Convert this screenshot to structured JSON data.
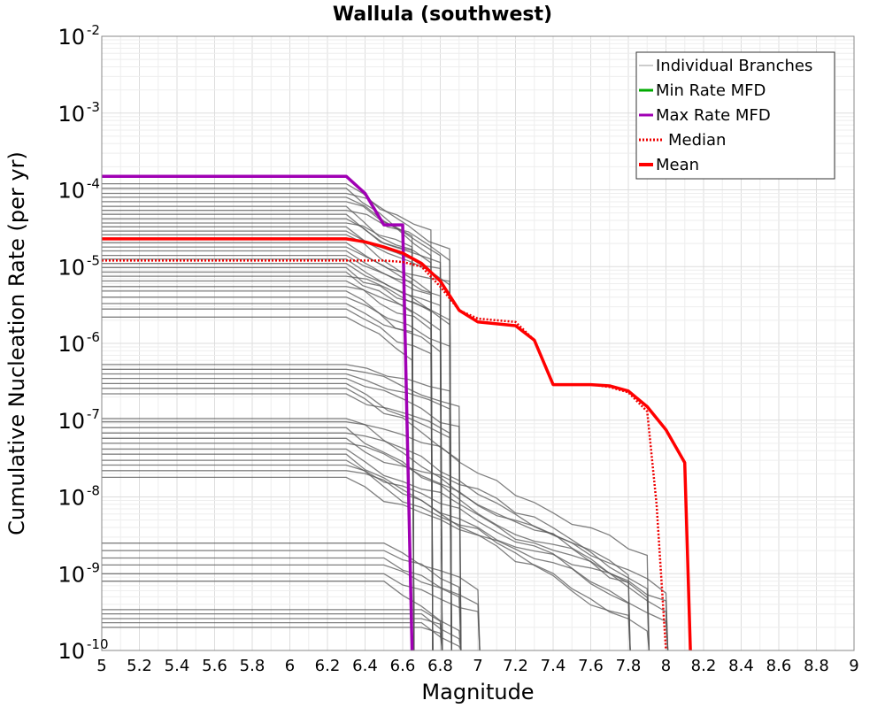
{
  "chart_data": {
    "type": "line",
    "title": "Wallula (southwest)",
    "xlabel": "Magnitude",
    "ylabel": "Cumulative Nucleation Rate (per yr)",
    "xlim": [
      5,
      9
    ],
    "ylim": [
      1e-10,
      0.01
    ],
    "yscale": "log",
    "grid": true,
    "legend_position": "top-right",
    "x_ticks": [
      "5",
      "5.2",
      "5.4",
      "5.6",
      "5.8",
      "6",
      "6.2",
      "6.4",
      "6.6",
      "6.8",
      "7",
      "7.2",
      "7.4",
      "7.6",
      "7.8",
      "8",
      "8.2",
      "8.4",
      "8.6",
      "8.8",
      "9"
    ],
    "y_ticks": [
      {
        "base": "10",
        "exp": "-10",
        "value": 1e-10
      },
      {
        "base": "10",
        "exp": "-9",
        "value": 1e-09
      },
      {
        "base": "10",
        "exp": "-8",
        "value": 1e-08
      },
      {
        "base": "10",
        "exp": "-7",
        "value": 1e-07
      },
      {
        "base": "10",
        "exp": "-6",
        "value": 1e-06
      },
      {
        "base": "10",
        "exp": "-5",
        "value": 1e-05
      },
      {
        "base": "10",
        "exp": "-4",
        "value": 0.0001
      },
      {
        "base": "10",
        "exp": "-3",
        "value": 0.001
      },
      {
        "base": "10",
        "exp": "-2",
        "value": 0.01
      }
    ],
    "series": [
      {
        "name": "Max Rate MFD",
        "color": "#a000b4",
        "style": "solid",
        "x": [
          5.0,
          6.3,
          6.4,
          6.5,
          6.6,
          6.65
        ],
        "y": [
          0.00015,
          0.00015,
          9e-05,
          3.5e-05,
          3.5e-05,
          1e-10
        ]
      },
      {
        "name": "Min Rate MFD",
        "color": "#00aa00",
        "style": "solid",
        "x": [],
        "y": []
      },
      {
        "name": "Median",
        "color": "#ee0000",
        "style": "dotted",
        "x": [
          5.0,
          6.3,
          6.4,
          6.5,
          6.6,
          6.7,
          6.8,
          6.9,
          7.0,
          7.1,
          7.2,
          7.3,
          7.4,
          7.5,
          7.6,
          7.7,
          7.8,
          7.9,
          7.95,
          8.0
        ],
        "y": [
          1.2e-05,
          1.2e-05,
          1.2e-05,
          1.2e-05,
          1.15e-05,
          1e-05,
          5.5e-06,
          2.7e-06,
          2.1e-06,
          2e-06,
          1.9e-06,
          1.1e-06,
          2.9e-07,
          2.9e-07,
          2.9e-07,
          2.7e-07,
          2.3e-07,
          1.3e-07,
          8e-09,
          1e-10
        ]
      },
      {
        "name": "Mean",
        "color": "#ff0000",
        "style": "solid",
        "x": [
          5.0,
          6.3,
          6.4,
          6.5,
          6.6,
          6.7,
          6.8,
          6.9,
          7.0,
          7.1,
          7.2,
          7.3,
          7.4,
          7.5,
          7.6,
          7.7,
          7.8,
          7.9,
          8.0,
          8.1,
          8.13
        ],
        "y": [
          2.3e-05,
          2.3e-05,
          2.1e-05,
          1.8e-05,
          1.5e-05,
          1.1e-05,
          6.5e-06,
          2.7e-06,
          1.9e-06,
          1.8e-06,
          1.7e-06,
          1.1e-06,
          2.9e-07,
          2.9e-07,
          2.9e-07,
          2.8e-07,
          2.4e-07,
          1.5e-07,
          7.5e-08,
          2.8e-08,
          1e-10
        ]
      }
    ],
    "individual_branches": {
      "name": "Individual Branches",
      "color": "#555555",
      "groups": [
        {
          "levels": [
            2.2e-06,
            2.8e-06,
            3.3e-06,
            4e-06,
            4.8e-06,
            5.5e-06,
            6.5e-06,
            7.5e-06,
            8.5e-06,
            9.7e-06,
            1.1e-05,
            1.25e-05,
            1.4e-05,
            1.6e-05,
            1.8e-05,
            2.05e-05,
            2.3e-05,
            2.6e-05,
            2.9e-05,
            3.3e-05,
            3.7e-05,
            4.2e-05,
            4.8e-05,
            5.4e-05,
            6.1e-05,
            7e-05,
            8e-05,
            9e-05,
            0.000105,
            0.00012
          ],
          "start": 6.3,
          "drops": [
            6.65,
            6.75,
            6.8,
            6.85
          ]
        },
        {
          "levels": [
            2.2e-07,
            2.6e-07,
            3e-07,
            3.5e-07,
            4e-07,
            4.6e-07,
            5.3e-07
          ],
          "start": 6.3,
          "drops": [
            6.85,
            6.9
          ]
        },
        {
          "levels": [
            1.8e-08,
            2.2e-08,
            2.6e-08,
            3e-08,
            3.6e-08,
            4.2e-08,
            5e-08,
            5.8e-08,
            6.8e-08,
            8e-08,
            9.5e-08,
            1.05e-07
          ],
          "start": 6.3,
          "drops": [
            7.8,
            7.9,
            8.0
          ]
        },
        {
          "levels": [
            8e-10,
            1e-09,
            1.3e-09,
            1.6e-09,
            2e-09,
            2.5e-09
          ],
          "start": 6.5,
          "drops": [
            6.9,
            7.0
          ]
        },
        {
          "levels": [
            2e-10,
            2.3e-10,
            2.6e-10,
            3e-10,
            3.4e-10
          ],
          "start": 6.7,
          "drops": [
            6.8,
            6.9
          ]
        }
      ]
    }
  }
}
